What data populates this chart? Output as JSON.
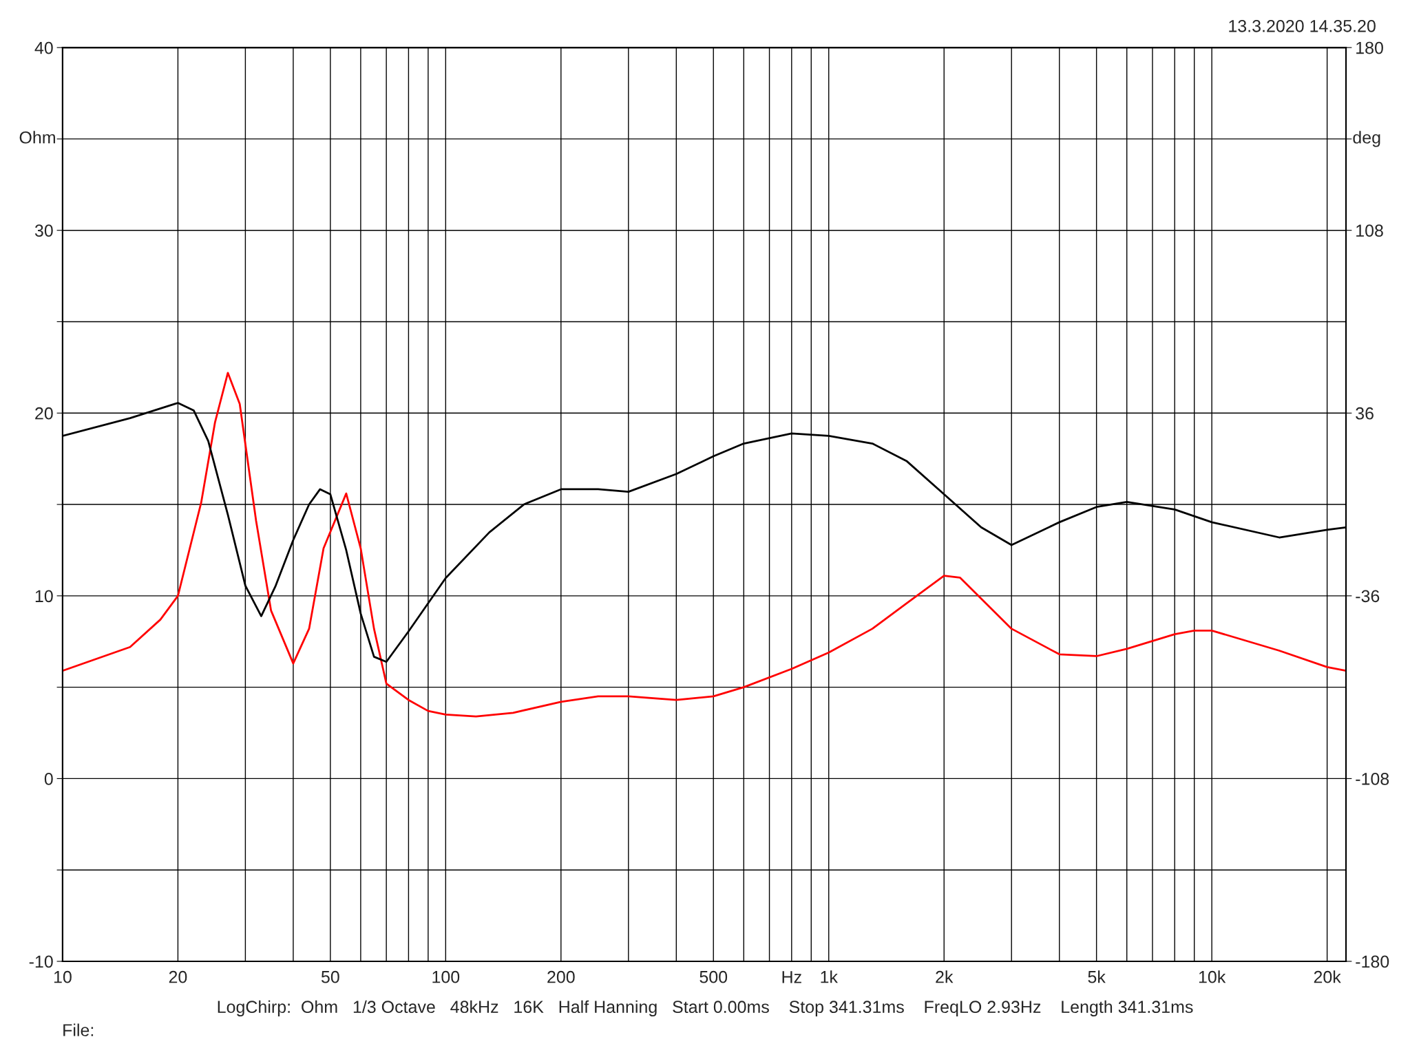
{
  "chart_data": {
    "type": "line",
    "subtitle": "13.3.2020 14.35.20",
    "xlabel": "Hz",
    "ylabel": "Ohm",
    "y2label": "deg",
    "annotations": [
      "LogChirp:  Ohm   1/3 Octave   48kHz   16K   Half Hanning   Start 0.00ms    Stop 341.31ms    FreqLO 2.93Hz    Length 341.31ms",
      "File:"
    ],
    "log": "x",
    "grid": true,
    "legend": false,
    "marker": "none",
    "line_style": "solid",
    "xlim": [
      10,
      22400
    ],
    "xticks": [
      10,
      20,
      {
        "value": 30,
        "label": null
      },
      {
        "value": 40,
        "label": null
      },
      50,
      {
        "value": 60,
        "label": null
      },
      {
        "value": 70,
        "label": null
      },
      {
        "value": 80,
        "label": null
      },
      {
        "value": 90,
        "label": null
      },
      100,
      200,
      {
        "value": 300,
        "label": null
      },
      {
        "value": 400,
        "label": null
      },
      500,
      {
        "value": 600,
        "label": null
      },
      {
        "value": 700,
        "label": null
      },
      {
        "value": 800,
        "label": null
      },
      {
        "value": 900,
        "label": null
      },
      {
        "value": 1000,
        "label": "1k"
      },
      {
        "value": 2000,
        "label": "2k"
      },
      {
        "value": 3000,
        "label": null
      },
      {
        "value": 4000,
        "label": null
      },
      {
        "value": 5000,
        "label": "5k"
      },
      {
        "value": 6000,
        "label": null
      },
      {
        "value": 7000,
        "label": null
      },
      {
        "value": 8000,
        "label": null
      },
      {
        "value": 9000,
        "label": null
      },
      {
        "value": 10000,
        "label": "10k"
      },
      {
        "value": 20000,
        "label": "20k"
      }
    ],
    "ylim": [
      -10,
      40
    ],
    "yticks": [
      -10,
      {
        "value": -5,
        "label": null
      },
      0,
      {
        "value": 5,
        "label": null
      },
      10,
      {
        "value": 15,
        "label": null
      },
      20,
      {
        "value": 25,
        "label": null
      },
      30,
      {
        "value": 35,
        "label": null
      },
      40
    ],
    "y2lim": [
      -180,
      180
    ],
    "y2ticks": [
      -180,
      -108,
      -36,
      36,
      108,
      {
        "value": 144,
        "label": null
      },
      180
    ],
    "series": [
      {
        "color": "#ff0000",
        "x": [
          10,
          15,
          18,
          20,
          23,
          25,
          27,
          29,
          32,
          35,
          40,
          44,
          48,
          55,
          60,
          65,
          70,
          80,
          90,
          100,
          120,
          150,
          200,
          250,
          300,
          400,
          500,
          600,
          800,
          1000,
          1300,
          1600,
          2000,
          2200,
          3000,
          4000,
          5000,
          6000,
          8000,
          9000,
          10000,
          15000,
          20000,
          22400
        ],
        "values": [
          5.9,
          7.2,
          8.7,
          10.0,
          15.1,
          19.5,
          22.2,
          20.5,
          14.1,
          9.2,
          6.3,
          8.2,
          12.6,
          15.6,
          12.6,
          8.2,
          5.2,
          4.3,
          3.7,
          3.5,
          3.4,
          3.6,
          4.2,
          4.5,
          4.5,
          4.3,
          4.5,
          5.0,
          6.0,
          6.9,
          8.2,
          9.6,
          11.1,
          11.0,
          8.2,
          6.8,
          6.7,
          7.1,
          7.9,
          8.1,
          8.1,
          7.0,
          6.1,
          5.9
        ]
      },
      {
        "color": "#000000",
        "axis": "y2",
        "x": [
          10,
          15,
          20,
          22,
          24,
          27,
          30,
          33,
          36,
          40,
          44,
          47,
          50,
          55,
          60,
          65,
          70,
          80,
          100,
          130,
          160,
          200,
          250,
          300,
          400,
          500,
          600,
          800,
          1000,
          1300,
          1600,
          2000,
          2500,
          3000,
          4000,
          5000,
          6000,
          8000,
          10000,
          15000,
          20000,
          22400
        ],
        "values": [
          27,
          34,
          40,
          37,
          25,
          -4,
          -32,
          -44,
          -32,
          -14,
          0,
          6,
          4,
          -18,
          -43,
          -60,
          -62,
          -50,
          -29,
          -11,
          0,
          6,
          6,
          5,
          12,
          19,
          24,
          28,
          27,
          24,
          17,
          4,
          -9,
          -16,
          -7,
          -1,
          1,
          -2,
          -7,
          -13,
          -10,
          -9
        ]
      }
    ]
  }
}
